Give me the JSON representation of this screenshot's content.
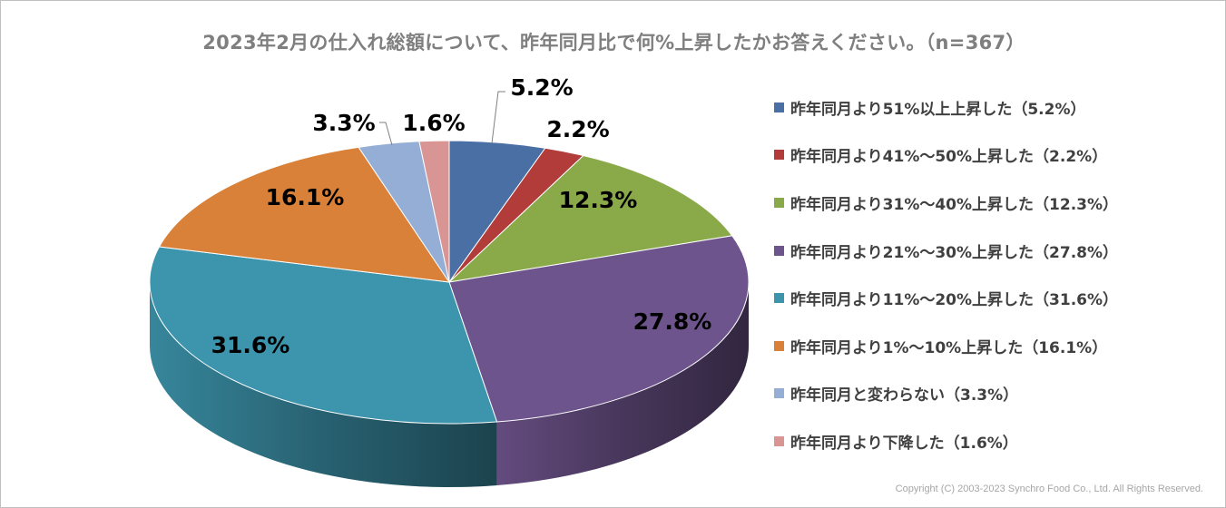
{
  "chart_data": {
    "type": "pie",
    "title": "2023年2月の仕入れ総額について、昨年同月比で何%上昇したかお答えください。（n=367）",
    "slices": [
      {
        "label": "昨年同月より51%以上上昇した（5.2%）",
        "value": 5.2,
        "display": "5.2%",
        "color": "#4a6fa5"
      },
      {
        "label": "昨年同月より41%～50%上昇した（2.2%）",
        "value": 2.2,
        "display": "2.2%",
        "color": "#b23c3a"
      },
      {
        "label": "昨年同月より31%～40%上昇した（12.3%）",
        "value": 12.3,
        "display": "12.3%",
        "color": "#8aaa4a"
      },
      {
        "label": "昨年同月より21%～30%上昇した（27.8%）",
        "value": 27.8,
        "display": "27.8%",
        "color": "#6e548c"
      },
      {
        "label": "昨年同月より11%～20%上昇した（31.6%）",
        "value": 31.6,
        "display": "31.6%",
        "color": "#3d95ad"
      },
      {
        "label": "昨年同月より1%～10%上昇した（16.1%）",
        "value": 16.1,
        "display": "16.1%",
        "color": "#d98138"
      },
      {
        "label": "昨年同月と変わらない（3.3%）",
        "value": 3.3,
        "display": "3.3%",
        "color": "#94aed6"
      },
      {
        "label": "昨年同月より下降した（1.6%）",
        "value": 1.6,
        "display": "1.6%",
        "color": "#d99594"
      }
    ],
    "legend_position": "right",
    "style": "3d-pie"
  },
  "footer": {
    "copyright": "Copyright (C) 2003-2023 Synchro Food Co., Ltd. All Rights Reserved."
  }
}
